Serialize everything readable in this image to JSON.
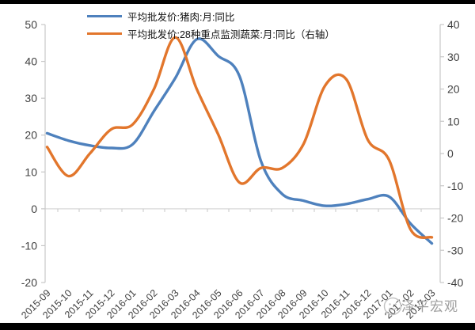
{
  "legend": {
    "items": [
      {
        "id": "pork",
        "label": "平均批发价:猪肉:月:同比",
        "color": "#4e81bd"
      },
      {
        "id": "vegetables",
        "label": "平均批发价:28种重点监测蔬菜:月:同比（右轴）",
        "color": "#e2762c"
      }
    ]
  },
  "watermark": {
    "text": "泽平宏观"
  },
  "chart_data": {
    "type": "line",
    "title": "",
    "categories": [
      "2015-09",
      "2015-10",
      "2015-11",
      "2015-12",
      "2016-01",
      "2016-02",
      "2016-03",
      "2016-04",
      "2016-05",
      "2016-06",
      "2016-07",
      "2016-08",
      "2016-09",
      "2016-10",
      "2016-11",
      "2016-12",
      "2017-01",
      "2017-02",
      "2017-03"
    ],
    "series": [
      {
        "id": "pork",
        "name": "平均批发价:猪肉:月:同比",
        "axis": "left",
        "color": "#4e81bd",
        "values": [
          20.5,
          18.5,
          17.2,
          16.5,
          17.5,
          26.5,
          35.5,
          46,
          41.5,
          36,
          13,
          4,
          2.2,
          0.8,
          1.3,
          2.6,
          3.3,
          -4,
          -9.4
        ]
      },
      {
        "id": "vegetables",
        "name": "平均批发价:28种重点监测蔬菜:月:同比（右轴）",
        "axis": "right",
        "color": "#e2762c",
        "values": [
          2,
          -7,
          0,
          7.5,
          9,
          20,
          36,
          20,
          6,
          -9,
          -4.5,
          -4.5,
          3,
          21,
          23,
          4.3,
          -2,
          -23.5,
          -26
        ]
      }
    ],
    "left_axis": {
      "min": -20,
      "max": 50,
      "step": 10,
      "tick_labels": [
        "50",
        "40",
        "30",
        "20",
        "10",
        "0",
        "-10",
        "-20"
      ]
    },
    "right_axis": {
      "min": -40,
      "max": 40,
      "step": 10,
      "tick_labels": [
        "40",
        "30",
        "20",
        "10",
        "0",
        "-10",
        "-20",
        "-30",
        "-40"
      ]
    },
    "gridlines": "single horizontal line at left-axis zero",
    "legend_position": "top-center",
    "x_label_rotation": -45
  }
}
